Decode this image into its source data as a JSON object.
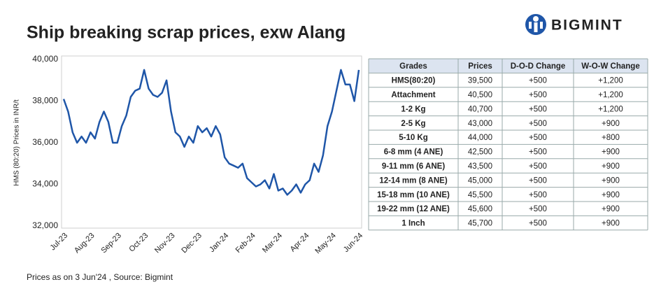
{
  "chart_data": {
    "type": "line",
    "title": "Ship breaking scrap prices, exw Alang",
    "y_label": "HMS (80:20) Prices in INR/t",
    "categories": [
      "Jul-23",
      null,
      null,
      null,
      null,
      null,
      "Aug-23",
      null,
      null,
      null,
      null,
      null,
      "Sep-23",
      null,
      null,
      null,
      null,
      null,
      "Oct-23",
      null,
      null,
      null,
      null,
      null,
      "Nov-23",
      null,
      null,
      null,
      null,
      null,
      "Dec-23",
      null,
      null,
      null,
      null,
      null,
      "Jan-24",
      null,
      null,
      null,
      null,
      null,
      "Feb-24",
      null,
      null,
      null,
      null,
      null,
      "Mar-24",
      null,
      null,
      null,
      null,
      null,
      "Apr-24",
      null,
      null,
      null,
      null,
      null,
      "May-24",
      null,
      null,
      null,
      null,
      null,
      "Jun-24"
    ],
    "values": [
      38100,
      37500,
      36500,
      36000,
      36300,
      36000,
      36500,
      36200,
      37000,
      37500,
      37000,
      36000,
      36000,
      36800,
      37300,
      38200,
      38500,
      38600,
      39500,
      38600,
      38300,
      38200,
      38400,
      39000,
      37500,
      36500,
      36300,
      35800,
      36300,
      36000,
      36800,
      36500,
      36700,
      36300,
      36800,
      36400,
      35300,
      35000,
      34900,
      34800,
      35000,
      34300,
      34100,
      33900,
      34000,
      34200,
      33800,
      34500,
      33700,
      33800,
      33500,
      33700,
      34000,
      33600,
      34000,
      34200,
      35000,
      34600,
      35400,
      36800,
      37500,
      38500,
      39500,
      38800,
      38800,
      38000,
      39500
    ],
    "color": "#1f56a8",
    "ylim": [
      32000,
      40000
    ],
    "yticks": [
      {
        "value": 32000,
        "label": "32,000"
      },
      {
        "value": 34000,
        "label": "34,000"
      },
      {
        "value": 36000,
        "label": "36,000"
      },
      {
        "value": 38000,
        "label": "38,000"
      },
      {
        "value": 40000,
        "label": "40,000"
      }
    ],
    "grid": false
  },
  "table": {
    "header": [
      "Grades",
      "Prices",
      "D-O-D Change",
      "W-O-W Change"
    ],
    "rows": [
      [
        "HMS(80:20)",
        "39,500",
        "+500",
        "+1,200"
      ],
      [
        "Attachment",
        "40,500",
        "+500",
        "+1,200"
      ],
      [
        "1-2 Kg",
        "40,700",
        "+500",
        "+1,200"
      ],
      [
        "2-5 Kg",
        "43,000",
        "+500",
        "+900"
      ],
      [
        "5-10 Kg",
        "44,000",
        "+500",
        "+800"
      ],
      [
        "6-8 mm (4 ANE)",
        "42,500",
        "+500",
        "+900"
      ],
      [
        "9-11 mm (6 ANE)",
        "43,500",
        "+500",
        "+900"
      ],
      [
        "12-14 mm (8 ANE)",
        "45,000",
        "+500",
        "+900"
      ],
      [
        "15-18 mm (10 ANE)",
        "45,500",
        "+500",
        "+900"
      ],
      [
        "19-22 mm (12 ANE)",
        "45,600",
        "+500",
        "+900"
      ],
      [
        "1 Inch",
        "45,700",
        "+500",
        "+900"
      ]
    ]
  },
  "footer": "Prices as on 3 Jun'24 , Source: Bigmint",
  "logo": "BIGMINT"
}
